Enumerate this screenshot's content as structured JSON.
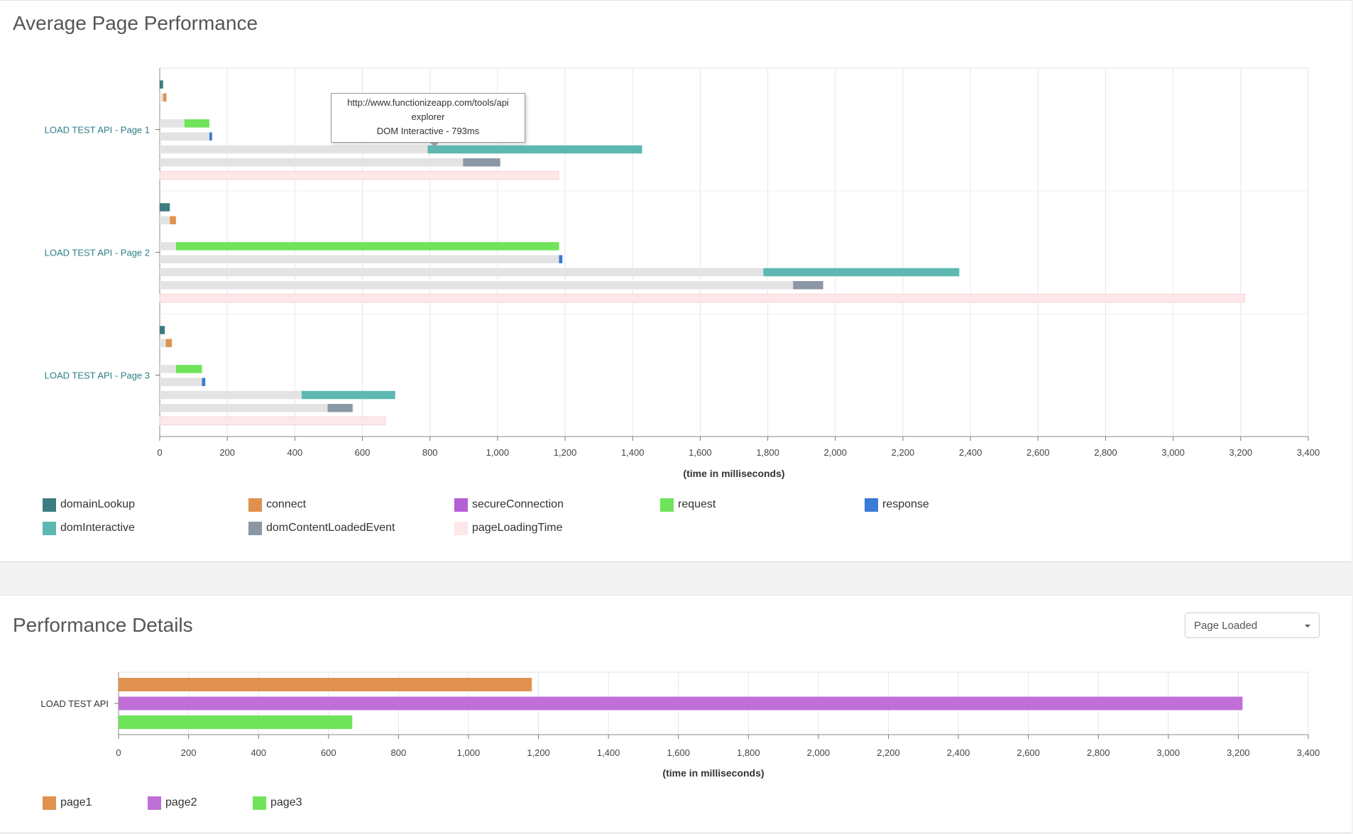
{
  "average_panel": {
    "title": "Average Page Performance"
  },
  "details_panel": {
    "title": "Performance Details",
    "dropdown": {
      "selected": "Page Loaded"
    }
  },
  "tooltip": {
    "line1": "http://www.functionizeapp.com/tools/api",
    "line2": "explorer",
    "line3": "DOM Interactive - 793ms"
  },
  "colors": {
    "domainLookup": "#3d7d80",
    "connect": "#e0914f",
    "secureConnection": "#b45fd6",
    "request": "#6fe35a",
    "response": "#3a7bd5",
    "domInteractive": "#5db8b2",
    "domContentLoadedEvent": "#8a97a4",
    "pageLoadingTime": "#fde7e9",
    "baseline": "#e3e3e3",
    "page1": "#e0914f",
    "page2": "#bf6fd6",
    "page3": "#6fe35a"
  },
  "chart_data": [
    {
      "type": "bar",
      "orientation": "horizontal",
      "stacking": "floating ranges (gray offset then colored segment)",
      "title": "Average Page Performance",
      "xlabel": "(time in milliseconds)",
      "xlim": [
        0,
        3400
      ],
      "xticks": [
        0,
        200,
        400,
        600,
        800,
        1000,
        1200,
        1400,
        1600,
        1800,
        2000,
        2200,
        2400,
        2600,
        2800,
        3000,
        3200,
        3400
      ],
      "xtick_labels": [
        "0",
        "200",
        "400",
        "600",
        "800",
        "1,000",
        "1,200",
        "1,400",
        "1,600",
        "1,800",
        "2,000",
        "2,200",
        "2,400",
        "2,600",
        "2,800",
        "3,000",
        "3,200",
        "3,400"
      ],
      "categories": [
        "LOAD TEST API - Page 1",
        "LOAD TEST API - Page 2",
        "LOAD TEST API - Page 3"
      ],
      "legend_position": "bottom",
      "grid": true,
      "series": [
        {
          "name": "domainLookup",
          "key": "domainLookup",
          "ranges": [
            [
              0,
              10
            ],
            [
              0,
              30
            ],
            [
              0,
              15
            ]
          ]
        },
        {
          "name": "connect",
          "key": "connect",
          "ranges": [
            [
              10,
              20
            ],
            [
              30,
              48
            ],
            [
              18,
              36
            ]
          ]
        },
        {
          "name": "secureConnection",
          "key": "secureConnection",
          "ranges": [
            [
              0,
              0
            ],
            [
              0,
              0
            ],
            [
              0,
              0
            ]
          ]
        },
        {
          "name": "request",
          "key": "request",
          "ranges": [
            [
              73,
              147
            ],
            [
              48,
              1182
            ],
            [
              48,
              125
            ]
          ]
        },
        {
          "name": "response",
          "key": "response",
          "ranges": [
            [
              147,
              155
            ],
            [
              1182,
              1192
            ],
            [
              125,
              135
            ]
          ]
        },
        {
          "name": "domInteractive",
          "key": "domInteractive",
          "ranges": [
            [
              793,
              1428
            ],
            [
              1787,
              2367
            ],
            [
              420,
              697
            ]
          ]
        },
        {
          "name": "domContentLoadedEvent",
          "key": "domContentLoadedEvent",
          "ranges": [
            [
              898,
              1008
            ],
            [
              1875,
              1964
            ],
            [
              497,
              571
            ]
          ]
        },
        {
          "name": "pageLoadingTime",
          "key": "pageLoadingTime",
          "ranges": [
            [
              0,
              1181
            ],
            [
              0,
              3212
            ],
            [
              0,
              668
            ]
          ]
        }
      ]
    },
    {
      "type": "bar",
      "orientation": "horizontal",
      "title": "Performance Details",
      "xlabel": "(time in milliseconds)",
      "xlim": [
        0,
        3400
      ],
      "xticks": [
        0,
        200,
        400,
        600,
        800,
        1000,
        1200,
        1400,
        1600,
        1800,
        2000,
        2200,
        2400,
        2600,
        2800,
        3000,
        3200,
        3400
      ],
      "xtick_labels": [
        "0",
        "200",
        "400",
        "600",
        "800",
        "1,000",
        "1,200",
        "1,400",
        "1,600",
        "1,800",
        "2,000",
        "2,200",
        "2,400",
        "2,600",
        "2,800",
        "3,000",
        "3,200",
        "3,400"
      ],
      "categories": [
        "LOAD TEST API"
      ],
      "legend_position": "bottom",
      "grid": true,
      "series": [
        {
          "name": "page1",
          "key": "page1",
          "values": [
            1181
          ]
        },
        {
          "name": "page2",
          "key": "page2",
          "values": [
            3212
          ]
        },
        {
          "name": "page3",
          "key": "page3",
          "values": [
            668
          ]
        }
      ]
    }
  ]
}
